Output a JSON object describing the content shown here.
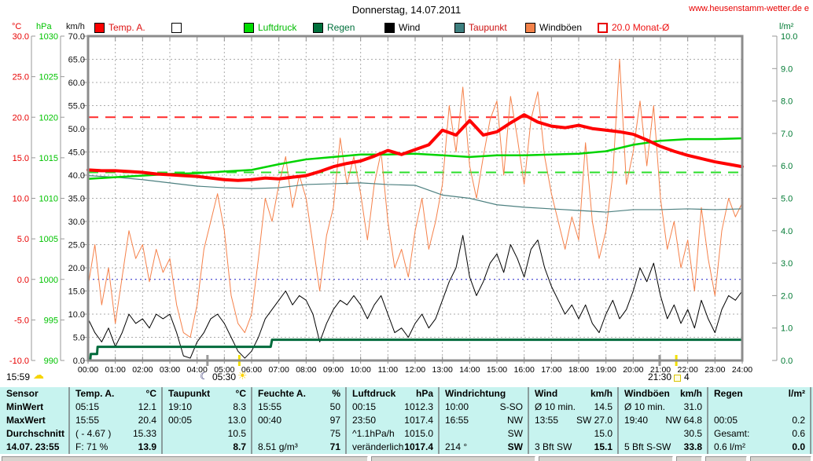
{
  "header": {
    "title": "Donnerstag, 14.07.2011",
    "website": "www.heusenstamm-wetter.de e"
  },
  "axis_units": {
    "temp": "°C",
    "pressure": "hPa",
    "wind": "km/h",
    "rain": "l/m²"
  },
  "legend": {
    "items": [
      {
        "id": "temp",
        "label": "Temp. A.",
        "color": "#dd1111",
        "box": "#ff0000"
      },
      {
        "id": "feuchte",
        "label": "",
        "color": "#000000",
        "box": "#ffffff"
      },
      {
        "id": "luftdruck",
        "label": "Luftdruck",
        "color": "#00bb00",
        "box": "#00dd00"
      },
      {
        "id": "regen",
        "label": "Regen",
        "color": "#00703c",
        "box": "#00703c"
      },
      {
        "id": "wind",
        "label": "Wind",
        "color": "#000000",
        "box": "#000000"
      },
      {
        "id": "taupunkt",
        "label": "Taupunkt",
        "color": "#cc1111",
        "box": "#3d7f7f"
      },
      {
        "id": "windboeen",
        "label": "Windböen",
        "color": "#000000",
        "box": "#f4824a"
      },
      {
        "id": "monat",
        "label": "20.0 Monat-Ø",
        "color": "#ee1111",
        "box": "outline"
      }
    ]
  },
  "footer_times": {
    "left_time": "15:59",
    "sunrise": "05:30",
    "sunset": "21:30",
    "moon_phase": "4"
  },
  "chart_data": {
    "type": "line",
    "title": "Donnerstag, 14.07.2011",
    "x_axis": {
      "range": [
        0,
        24
      ],
      "tick_labels": [
        "00:00",
        "01:00",
        "02:00",
        "03:00",
        "04:00",
        "05:00",
        "06:00",
        "07:00",
        "08:00",
        "09:00",
        "10:00",
        "11:00",
        "12:00",
        "13:00",
        "14:00",
        "15:00",
        "16:00",
        "17:00",
        "18:00",
        "19:00",
        "20:00",
        "21:00",
        "22:00",
        "23:00",
        "24:00"
      ]
    },
    "axes": {
      "temp": {
        "label": "°C",
        "range": [
          -10,
          30
        ],
        "color": "#e80000",
        "tick_values": [
          30,
          25,
          20,
          15,
          10,
          5,
          0,
          -5,
          -10
        ],
        "tick_labels": [
          "30.0",
          "25.0",
          "20.0",
          "15.0",
          "10.0",
          "5.0",
          "0.0",
          "-5.0",
          "-10.0"
        ]
      },
      "pressure": {
        "label": "hPa",
        "range": [
          990,
          1030
        ],
        "color": "#00c300",
        "tick_values": [
          1030,
          1025,
          1020,
          1015,
          1010,
          1005,
          1000,
          995,
          990
        ],
        "tick_labels": [
          "1030",
          "1025",
          "1020",
          "1015",
          "1010",
          "1005",
          "1000",
          "995",
          "990"
        ]
      },
      "wind": {
        "label": "km/h",
        "range": [
          0,
          70
        ],
        "color": "#111111",
        "tick_values": [
          70,
          65,
          60,
          55,
          50,
          45,
          40,
          35,
          30,
          25,
          20,
          15,
          10,
          5,
          0
        ],
        "tick_labels": [
          "70.0",
          "65.0",
          "60.0",
          "55.0",
          "50.0",
          "45.0",
          "40.0",
          "35.0",
          "30.0",
          "25.0",
          "20.0",
          "15.0",
          "10.0",
          "5.0",
          "0.0"
        ]
      },
      "rain": {
        "label": "l/m²",
        "range": [
          0,
          10
        ],
        "color": "#007a33",
        "tick_values": [
          10,
          9,
          8,
          7,
          6,
          5,
          4,
          3,
          2,
          1,
          0
        ],
        "tick_labels": [
          "10.0",
          "9.0",
          "8.0",
          "7.0",
          "6.0",
          "5.0",
          "4.0",
          "3.0",
          "2.0",
          "1.0",
          "0.0"
        ]
      }
    },
    "reference_lines": [
      {
        "id": "monthly-avg-temp",
        "axis": "temp",
        "value": 20.0,
        "color": "#ff2a2a",
        "dash": "13 9",
        "width": 2,
        "label": "20.0 Monat-Ø"
      },
      {
        "id": "pressure-guide",
        "axis": "pressure",
        "value": 1013.2,
        "color": "#2ade2a",
        "dash": "13 9",
        "width": 2,
        "label": ""
      },
      {
        "id": "zero-degrees",
        "axis": "temp",
        "value": 0.0,
        "color": "#2222cc",
        "dash": "2 4",
        "width": 1,
        "label": ""
      }
    ],
    "markers": {
      "sunrise_x": 5.55,
      "sunset_x": 21.58,
      "moon_x": [
        4.38,
        20.97
      ]
    },
    "series": [
      {
        "id": "windboeen",
        "name": "Windböen",
        "axis": "wind",
        "color": "#f5814a",
        "width": 1,
        "x_start": 0,
        "x_step": 0.25,
        "values": [
          16,
          25,
          12,
          20,
          8,
          18,
          28,
          22,
          25,
          17,
          24,
          19,
          22,
          12,
          6,
          5,
          12,
          24,
          30,
          36,
          28,
          14,
          8,
          6,
          10,
          22,
          35,
          30,
          38,
          44,
          33,
          40,
          35,
          25,
          15,
          27,
          33,
          48,
          38,
          44,
          36,
          26,
          38,
          45,
          30,
          20,
          24,
          18,
          28,
          35,
          24,
          30,
          38,
          55,
          45,
          59,
          42,
          35,
          44,
          52,
          56,
          40,
          57,
          48,
          38,
          52,
          58,
          44,
          36,
          30,
          24,
          31,
          26,
          47,
          30,
          22,
          28,
          40,
          65,
          38,
          45,
          56,
          42,
          55,
          35,
          24,
          30,
          20,
          26,
          15,
          33,
          22,
          14,
          28,
          35,
          31,
          34
        ]
      },
      {
        "id": "wind",
        "name": "Wind",
        "axis": "wind",
        "color": "#000000",
        "width": 1,
        "x_start": 0,
        "x_step": 0.25,
        "values": [
          9,
          6,
          4,
          7,
          3,
          6,
          10,
          8,
          9,
          7,
          10,
          9,
          10,
          6,
          1,
          0.5,
          4,
          6,
          9,
          10,
          8,
          5,
          2,
          0.5,
          2,
          5,
          9,
          11,
          13,
          15,
          12,
          14,
          13,
          10,
          4,
          8,
          11,
          13,
          12,
          14,
          12,
          9,
          12,
          14,
          10,
          6,
          7,
          5,
          8,
          10,
          7,
          9,
          13,
          17,
          20,
          27,
          18,
          14,
          17,
          21,
          23,
          19,
          25,
          22,
          18,
          24,
          26,
          20,
          16,
          13,
          10,
          12,
          9,
          12,
          8,
          6,
          10,
          13,
          9,
          11,
          15,
          20,
          17,
          21,
          14,
          9,
          12,
          8,
          11,
          7,
          13,
          9,
          6,
          11,
          14,
          13,
          15
        ]
      },
      {
        "id": "taupunkt",
        "name": "Taupunkt",
        "axis": "temp",
        "color": "#4d8080",
        "width": 1.2,
        "x_start": 0,
        "x_step": 1,
        "values": [
          12.8,
          12.6,
          12.3,
          11.9,
          11.5,
          11.3,
          11.2,
          11.3,
          11.7,
          11.8,
          11.9,
          11.7,
          11.6,
          10.4,
          10.0,
          9.2,
          8.9,
          8.7,
          8.5,
          8.3,
          8.6,
          8.6,
          8.7,
          8.6,
          8.7
        ]
      },
      {
        "id": "regen",
        "name": "Regen",
        "axis": "rain",
        "color": "#006b3c",
        "width": 3,
        "x": [
          0,
          0.08,
          0.1,
          0.33,
          0.35,
          6.7,
          6.75,
          24
        ],
        "values": [
          0,
          0,
          0.2,
          0.2,
          0.42,
          0.42,
          0.64,
          0.64
        ]
      },
      {
        "id": "luftdruck",
        "name": "Luftdruck",
        "axis": "pressure",
        "color": "#00d300",
        "width": 2.5,
        "x_start": 0,
        "x_step": 1,
        "values": [
          1012.4,
          1012.6,
          1012.8,
          1013.0,
          1013.1,
          1013.3,
          1013.5,
          1014.2,
          1014.8,
          1015.1,
          1015.4,
          1015.4,
          1015.5,
          1015.3,
          1015.1,
          1015.3,
          1015.3,
          1015.4,
          1015.5,
          1015.8,
          1016.6,
          1017.1,
          1017.3,
          1017.3,
          1017.4
        ]
      },
      {
        "id": "temp",
        "name": "Temp. A.",
        "axis": "temp",
        "color": "#ff0000",
        "width": 4,
        "x_start": 0,
        "x_step": 0.5,
        "values": [
          13.5,
          13.4,
          13.4,
          13.3,
          13.2,
          13.0,
          12.9,
          12.8,
          12.7,
          12.5,
          12.3,
          12.2,
          12.3,
          12.5,
          12.4,
          12.6,
          12.8,
          13.3,
          13.9,
          14.3,
          14.6,
          15.2,
          15.9,
          15.4,
          16.0,
          16.6,
          18.4,
          17.8,
          19.6,
          17.8,
          18.2,
          19.3,
          20.3,
          19.4,
          18.9,
          18.7,
          19.0,
          18.6,
          18.4,
          18.2,
          17.9,
          17.2,
          16.4,
          15.8,
          15.3,
          14.9,
          14.5,
          14.2,
          13.9
        ]
      }
    ]
  },
  "table": {
    "row_labels": [
      "Sensor",
      "MinWert",
      "MaxWert",
      "Durchschnitt",
      "14.07. 23:55"
    ],
    "groups": [
      {
        "id": "temp",
        "header": "Temp. A.",
        "unit": "°C",
        "rows": [
          [
            "05:15",
            "12.1"
          ],
          [
            "15:55",
            "20.4"
          ],
          [
            "( - 4.67 )",
            "15.33"
          ],
          [
            "F: 71 %",
            "13.9"
          ]
        ]
      },
      {
        "id": "taupunkt",
        "header": "Taupunkt",
        "unit": "°C",
        "rows": [
          [
            "19:10",
            "8.3"
          ],
          [
            "00:05",
            "13.0"
          ],
          [
            "",
            "10.5"
          ],
          [
            "",
            "8.7"
          ]
        ]
      },
      {
        "id": "feuchte",
        "header": "Feuchte A.",
        "unit": "%",
        "rows": [
          [
            "15:55",
            "50"
          ],
          [
            "00:40",
            "97"
          ],
          [
            "",
            "75"
          ],
          [
            "8.51 g/m³",
            "71"
          ]
        ]
      },
      {
        "id": "luftdruck",
        "header": "Luftdruck",
        "unit": "hPa",
        "rows": [
          [
            "00:15",
            "1012.3"
          ],
          [
            "23:50",
            "1017.4"
          ],
          [
            "^1.1hPa/h",
            "1015.0"
          ],
          [
            "veränderlich",
            "1017.4"
          ]
        ]
      },
      {
        "id": "windrichtung",
        "header": "Windrichtung",
        "unit": "",
        "rows": [
          [
            "10:00",
            "S-SO"
          ],
          [
            "16:55",
            "NW"
          ],
          [
            "",
            "SW"
          ],
          [
            "214 °",
            "SW"
          ]
        ]
      },
      {
        "id": "wind",
        "header": "Wind",
        "unit": "km/h",
        "rows": [
          [
            "Ø 10 min.",
            "14.5"
          ],
          [
            "13:55",
            "SW 27.0"
          ],
          [
            "",
            "15.0"
          ],
          [
            "3 Bft SW",
            "15.1"
          ]
        ]
      },
      {
        "id": "windboeen",
        "header": "Windböen",
        "unit": "km/h",
        "rows": [
          [
            "Ø 10 min.",
            "31.0"
          ],
          [
            "19:40",
            "NW 64.8"
          ],
          [
            "",
            "30.5"
          ],
          [
            "5 Bft S-SW",
            "33.8"
          ]
        ]
      },
      {
        "id": "regen",
        "header": "Regen",
        "unit": "l/m²",
        "rows": [
          [
            "",
            ""
          ],
          [
            "00:05",
            "0.2"
          ],
          [
            "Gesamt:",
            "0.6"
          ],
          [
            "0.6 l/m²",
            "0.0"
          ]
        ]
      }
    ]
  }
}
